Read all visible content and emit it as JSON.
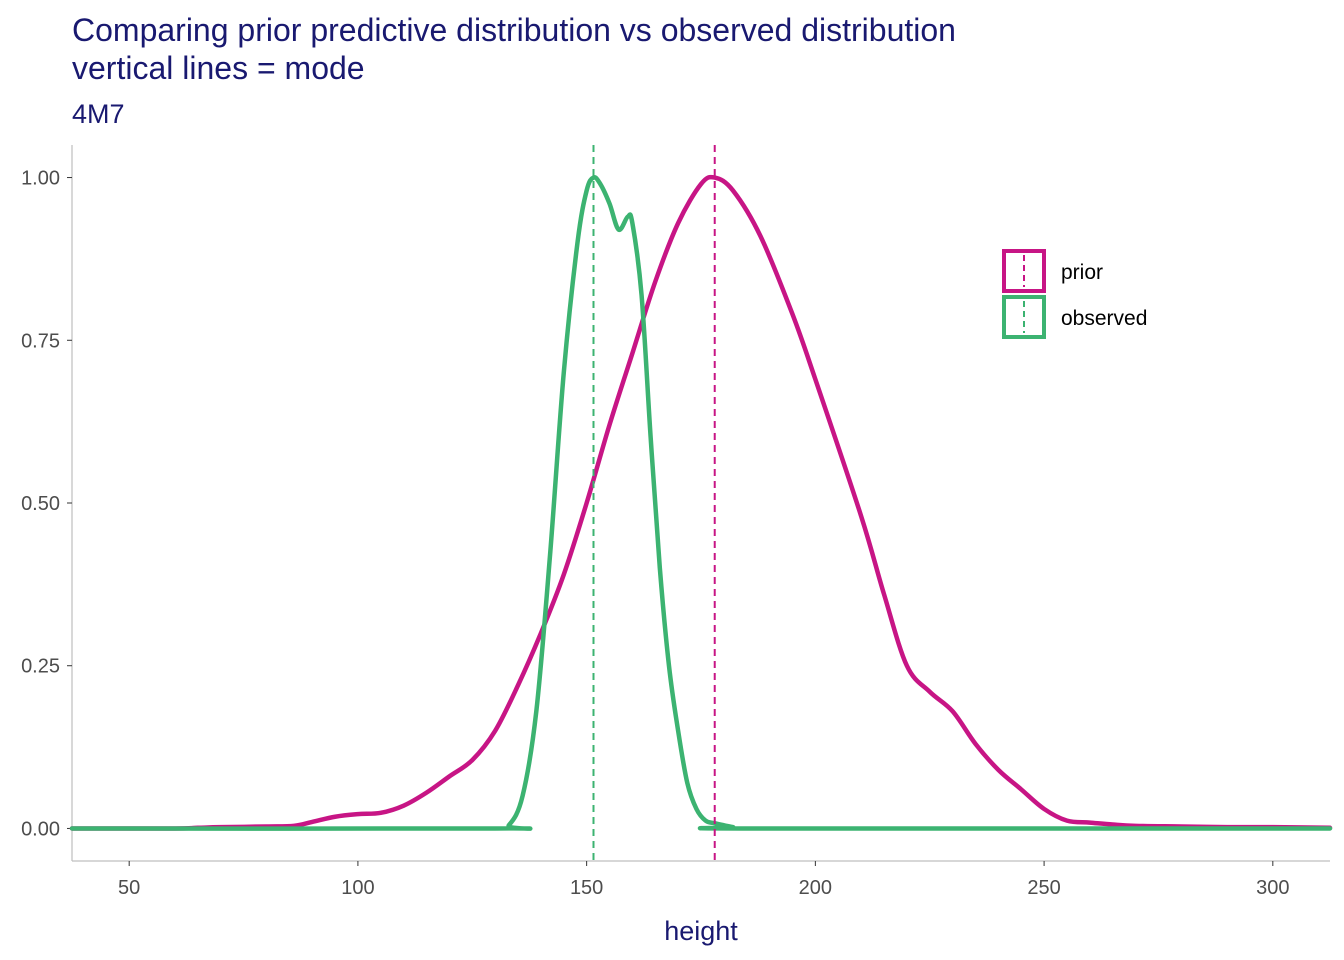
{
  "chart_data": {
    "type": "line",
    "title_line1": "Comparing prior predictive distribution vs observed distribution",
    "title_line2": "vertical lines = mode",
    "subtitle": "4M7",
    "xlabel": "height",
    "ylabel": "",
    "xlim": [
      37.5,
      312.5
    ],
    "ylim": [
      -0.05,
      1.05
    ],
    "x_ticks": [
      50,
      100,
      150,
      200,
      250,
      300
    ],
    "x_tick_labels": [
      "50",
      "100",
      "150",
      "200",
      "250",
      "300"
    ],
    "y_ticks": [
      0,
      0.25,
      0.5,
      0.75,
      1.0
    ],
    "y_tick_labels": [
      "0.00",
      "0.25",
      "0.50",
      "0.75",
      "1.00"
    ],
    "grid": false,
    "legend_position": "top-right",
    "series": [
      {
        "name": "prior",
        "color": "#C71585",
        "mode": 178,
        "points": [
          [
            37.5,
            0
          ],
          [
            60,
            0
          ],
          [
            65,
            0.001
          ],
          [
            70,
            0.002
          ],
          [
            80,
            0.003
          ],
          [
            86,
            0.004
          ],
          [
            90,
            0.01
          ],
          [
            95,
            0.018
          ],
          [
            100,
            0.022
          ],
          [
            105,
            0.024
          ],
          [
            110,
            0.035
          ],
          [
            115,
            0.055
          ],
          [
            120,
            0.08
          ],
          [
            125,
            0.105
          ],
          [
            130,
            0.15
          ],
          [
            135,
            0.22
          ],
          [
            140,
            0.3
          ],
          [
            145,
            0.39
          ],
          [
            150,
            0.5
          ],
          [
            155,
            0.62
          ],
          [
            160,
            0.73
          ],
          [
            165,
            0.84
          ],
          [
            170,
            0.93
          ],
          [
            175,
            0.99
          ],
          [
            178,
            1.0
          ],
          [
            182,
            0.98
          ],
          [
            188,
            0.91
          ],
          [
            195,
            0.79
          ],
          [
            200,
            0.69
          ],
          [
            210,
            0.48
          ],
          [
            215,
            0.36
          ],
          [
            220,
            0.25
          ],
          [
            225,
            0.21
          ],
          [
            230,
            0.18
          ],
          [
            235,
            0.13
          ],
          [
            240,
            0.09
          ],
          [
            245,
            0.06
          ],
          [
            250,
            0.03
          ],
          [
            255,
            0.012
          ],
          [
            260,
            0.009
          ],
          [
            265,
            0.006
          ],
          [
            270,
            0.004
          ],
          [
            280,
            0.003
          ],
          [
            290,
            0.002
          ],
          [
            300,
            0.002
          ],
          [
            312.5,
            0.001
          ]
        ]
      },
      {
        "name": "observed",
        "color": "#3CB371",
        "mode": 151.5,
        "points": [
          [
            37.5,
            0
          ],
          [
            130,
            0
          ],
          [
            133,
            0.005
          ],
          [
            136,
            0.05
          ],
          [
            139,
            0.18
          ],
          [
            142,
            0.42
          ],
          [
            145,
            0.7
          ],
          [
            148,
            0.9
          ],
          [
            150,
            0.98
          ],
          [
            151.5,
            1.0
          ],
          [
            153,
            0.99
          ],
          [
            155,
            0.96
          ],
          [
            157,
            0.92
          ],
          [
            159,
            0.94
          ],
          [
            160,
            0.93
          ],
          [
            162,
            0.82
          ],
          [
            164,
            0.6
          ],
          [
            166,
            0.4
          ],
          [
            168,
            0.25
          ],
          [
            170,
            0.15
          ],
          [
            172,
            0.07
          ],
          [
            174,
            0.03
          ],
          [
            176,
            0.012
          ],
          [
            178,
            0.008
          ],
          [
            182,
            0.002
          ],
          [
            185,
            0
          ],
          [
            312.5,
            0
          ]
        ]
      }
    ]
  }
}
